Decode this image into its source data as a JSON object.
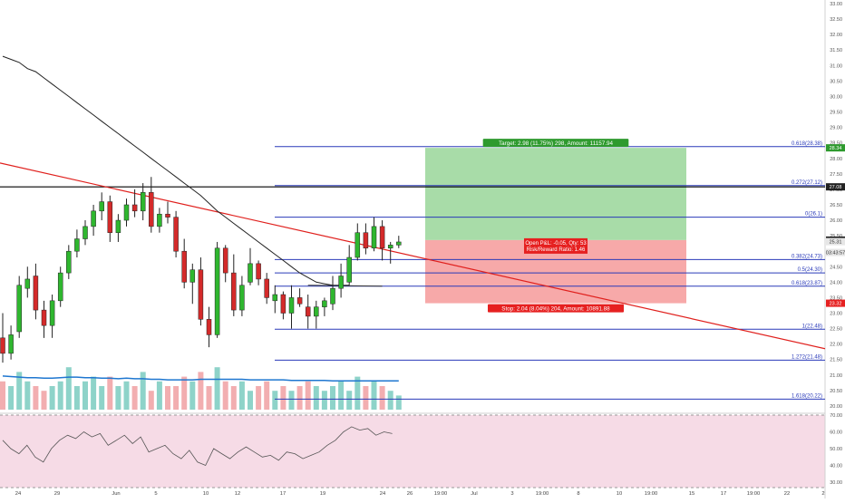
{
  "chart_data": [
    {
      "type": "candlestick",
      "title": "",
      "colors": {
        "up": "#26a69a",
        "down": "#ef5350",
        "up_bar": "#2fb72f",
        "down_bar": "#d42a2a",
        "ma": "#222222",
        "trendline": "#e0201d",
        "fib": "#2a3ab9",
        "target_zone": "#a8dca8",
        "stop_zone": "#f7a9a9",
        "target_label": "#2e9a2e",
        "stop_label": "#e62020",
        "pnl_label": "#e62020",
        "price_tag_green": "#2e9a2e",
        "price_tag_red": "#e62020",
        "rsi_band": "#f6dbe6",
        "vol_up": "#8ed3c9",
        "vol_down": "#f2aeb0",
        "vol_ma": "#1f77d0"
      },
      "y_axis": {
        "range": [
          20.0,
          33.0
        ],
        "ticks": [
          "33.00",
          "32.50",
          "32.00",
          "31.50",
          "31.00",
          "30.50",
          "30.00",
          "29.50",
          "29.00",
          "28.50",
          "28.00",
          "27.50",
          "27.00",
          "26.50",
          "26.00",
          "25.50",
          "25.00",
          "24.50",
          "24.00",
          "23.50",
          "23.00",
          "22.50",
          "22.00",
          "21.50",
          "21.00",
          "20.50",
          "20.00"
        ]
      },
      "x_axis": {
        "ticks": [
          "24",
          "29",
          "Jun",
          "5",
          "10",
          "12",
          "17",
          "19",
          "24",
          "26",
          "19:00",
          "Jul",
          "3",
          "19:00",
          "8",
          "10",
          "19:00",
          "15",
          "17",
          "19:00",
          "22",
          "2"
        ]
      },
      "price_tags": [
        {
          "label": "28.34",
          "value": 28.34,
          "kind": "green"
        },
        {
          "label": "27.08",
          "value": 27.08,
          "kind": "dark"
        },
        {
          "label": "25.36",
          "value": 25.36,
          "kind": "dark"
        },
        {
          "label": "25.31",
          "value": 25.31,
          "kind": "light"
        },
        {
          "label": "03:43:57",
          "value": 24.96,
          "kind": "light"
        },
        {
          "label": "23.32",
          "value": 23.32,
          "kind": "red"
        }
      ],
      "fib_levels": [
        {
          "label": "0.618(28.38)",
          "value": 28.38
        },
        {
          "label": "0.272(27.12)",
          "value": 27.12
        },
        {
          "label": "0(26.1)",
          "value": 26.1
        },
        {
          "label": "0.382(24.73)",
          "value": 24.73
        },
        {
          "label": "0.5(24.30)",
          "value": 24.3
        },
        {
          "label": "0.618(23.87)",
          "value": 23.87
        },
        {
          "label": "1(22.48)",
          "value": 22.48
        },
        {
          "label": "1.272(21.48)",
          "value": 21.48
        },
        {
          "label": "1.618(20.22)",
          "value": 20.22
        }
      ],
      "horizontal_line": {
        "value": 27.08
      },
      "position": {
        "entry": 25.36,
        "target": 28.34,
        "stop": 23.32,
        "target_label": "Target: 2.98 (11.75%) 298, Amount: 11157.94",
        "stop_label": "Stop: 2.04 (8.04%) 204, Amount: 10891.88",
        "pnl_line1": "Open P&L: -0.05, Qty: 53",
        "pnl_line2": "Risk/Reward Ratio: 1.46"
      },
      "trendline": {
        "start_value": 27.85,
        "end_value": 21.85
      },
      "candles": [
        {
          "o": 22.2,
          "h": 23.0,
          "l": 21.4,
          "c": 21.7
        },
        {
          "o": 21.7,
          "h": 22.6,
          "l": 21.5,
          "c": 22.3
        },
        {
          "o": 22.4,
          "h": 24.2,
          "l": 22.2,
          "c": 23.9
        },
        {
          "o": 23.8,
          "h": 24.5,
          "l": 23.5,
          "c": 24.1
        },
        {
          "o": 24.2,
          "h": 24.6,
          "l": 22.8,
          "c": 23.1
        },
        {
          "o": 23.1,
          "h": 23.4,
          "l": 22.2,
          "c": 22.6
        },
        {
          "o": 22.6,
          "h": 23.6,
          "l": 22.2,
          "c": 23.4
        },
        {
          "o": 23.4,
          "h": 24.5,
          "l": 23.2,
          "c": 24.3
        },
        {
          "o": 24.3,
          "h": 25.2,
          "l": 24.1,
          "c": 25.0
        },
        {
          "o": 25.0,
          "h": 25.7,
          "l": 24.8,
          "c": 25.4
        },
        {
          "o": 25.4,
          "h": 26.0,
          "l": 25.2,
          "c": 25.8
        },
        {
          "o": 25.8,
          "h": 26.5,
          "l": 25.5,
          "c": 26.3
        },
        {
          "o": 26.3,
          "h": 26.9,
          "l": 26.0,
          "c": 26.6
        },
        {
          "o": 26.6,
          "h": 26.8,
          "l": 25.3,
          "c": 25.6
        },
        {
          "o": 25.6,
          "h": 26.2,
          "l": 25.3,
          "c": 26.0
        },
        {
          "o": 26.0,
          "h": 26.7,
          "l": 25.8,
          "c": 26.5
        },
        {
          "o": 26.5,
          "h": 27.0,
          "l": 26.1,
          "c": 26.3
        },
        {
          "o": 26.3,
          "h": 27.2,
          "l": 26.0,
          "c": 26.9
        },
        {
          "o": 26.9,
          "h": 27.4,
          "l": 25.6,
          "c": 25.8
        },
        {
          "o": 25.8,
          "h": 26.4,
          "l": 25.6,
          "c": 26.2
        },
        {
          "o": 26.2,
          "h": 26.6,
          "l": 25.9,
          "c": 26.1
        },
        {
          "o": 26.1,
          "h": 26.3,
          "l": 24.8,
          "c": 25.0
        },
        {
          "o": 25.0,
          "h": 25.4,
          "l": 23.8,
          "c": 24.0
        },
        {
          "o": 24.0,
          "h": 24.6,
          "l": 23.3,
          "c": 24.4
        },
        {
          "o": 24.4,
          "h": 24.8,
          "l": 22.6,
          "c": 22.8
        },
        {
          "o": 22.8,
          "h": 23.2,
          "l": 21.9,
          "c": 22.3
        },
        {
          "o": 22.3,
          "h": 25.3,
          "l": 22.2,
          "c": 25.1
        },
        {
          "o": 25.1,
          "h": 25.2,
          "l": 24.0,
          "c": 24.3
        },
        {
          "o": 24.3,
          "h": 24.9,
          "l": 22.9,
          "c": 23.1
        },
        {
          "o": 23.1,
          "h": 24.2,
          "l": 22.9,
          "c": 23.9
        },
        {
          "o": 24.0,
          "h": 25.1,
          "l": 23.9,
          "c": 24.6
        },
        {
          "o": 24.6,
          "h": 24.7,
          "l": 23.9,
          "c": 24.1
        },
        {
          "o": 24.1,
          "h": 24.3,
          "l": 23.3,
          "c": 23.5
        },
        {
          "o": 23.4,
          "h": 23.9,
          "l": 23.0,
          "c": 23.6
        },
        {
          "o": 23.6,
          "h": 23.7,
          "l": 22.8,
          "c": 23.0
        },
        {
          "o": 23.0,
          "h": 23.9,
          "l": 22.5,
          "c": 23.5
        },
        {
          "o": 23.5,
          "h": 23.8,
          "l": 23.2,
          "c": 23.3
        },
        {
          "o": 23.2,
          "h": 23.6,
          "l": 22.5,
          "c": 22.9
        },
        {
          "o": 22.9,
          "h": 23.4,
          "l": 22.5,
          "c": 23.2
        },
        {
          "o": 23.2,
          "h": 23.5,
          "l": 22.9,
          "c": 23.4
        },
        {
          "o": 23.3,
          "h": 24.2,
          "l": 23.1,
          "c": 23.8
        },
        {
          "o": 23.8,
          "h": 24.6,
          "l": 23.5,
          "c": 24.2
        },
        {
          "o": 24.0,
          "h": 25.2,
          "l": 23.9,
          "c": 24.8
        },
        {
          "o": 24.8,
          "h": 25.9,
          "l": 24.7,
          "c": 25.6
        },
        {
          "o": 25.6,
          "h": 25.9,
          "l": 24.9,
          "c": 25.1
        },
        {
          "o": 25.1,
          "h": 26.1,
          "l": 25.0,
          "c": 25.8
        },
        {
          "o": 25.8,
          "h": 26.0,
          "l": 24.7,
          "c": 25.1
        },
        {
          "o": 25.1,
          "h": 25.3,
          "l": 24.6,
          "c": 25.2
        },
        {
          "o": 25.2,
          "h": 25.5,
          "l": 25.1,
          "c": 25.3
        }
      ],
      "ma": [
        31.3,
        31.2,
        31.1,
        30.9,
        30.8,
        30.6,
        30.4,
        30.2,
        30.0,
        29.8,
        29.6,
        29.4,
        29.2,
        29.0,
        28.8,
        28.6,
        28.4,
        28.2,
        28.0,
        27.8,
        27.6,
        27.4,
        27.2,
        27.0,
        26.8,
        26.55,
        26.3,
        26.1,
        25.9,
        25.7,
        25.5,
        25.3,
        25.1,
        24.9,
        24.7,
        24.5,
        24.3,
        24.15,
        24.0,
        23.95,
        23.9,
        23.9,
        23.9
      ],
      "volume": {
        "values": [
          6,
          5,
          8,
          6,
          5,
          4,
          5,
          6,
          9,
          5,
          6,
          7,
          5,
          7,
          5,
          6,
          5,
          8,
          4,
          6,
          5,
          5,
          7,
          6,
          8,
          5,
          9,
          6,
          5,
          6,
          4,
          5,
          6,
          4,
          5,
          4,
          5,
          6,
          5,
          4,
          5,
          6,
          4,
          7,
          5,
          6,
          5,
          4,
          3
        ],
        "up": [
          false,
          true,
          true,
          true,
          false,
          false,
          true,
          true,
          true,
          true,
          true,
          true,
          true,
          false,
          true,
          true,
          false,
          true,
          false,
          true,
          false,
          false,
          false,
          true,
          false,
          false,
          true,
          false,
          false,
          true,
          true,
          false,
          false,
          true,
          false,
          true,
          false,
          false,
          true,
          true,
          true,
          true,
          true,
          true,
          false,
          true,
          false,
          true,
          true
        ],
        "ma": [
          6.2,
          6.1,
          6.0,
          5.9,
          5.9,
          5.8,
          5.8,
          5.9,
          6.0,
          6.0,
          5.9,
          5.9,
          5.8,
          5.8,
          5.7,
          5.8,
          5.7,
          5.7,
          5.6,
          5.6,
          5.5,
          5.5,
          5.5,
          5.5,
          5.6,
          5.6,
          5.6,
          5.6,
          5.6,
          5.6,
          5.5,
          5.5,
          5.5,
          5.5,
          5.5,
          5.4,
          5.4,
          5.4,
          5.4,
          5.4,
          5.3,
          5.3,
          5.3,
          5.3,
          5.3,
          5.3,
          5.3,
          5.3,
          5.3
        ]
      },
      "rsi": {
        "ticks": [
          "70.00",
          "60.00",
          "50.00",
          "40.00",
          "30.00"
        ],
        "range": [
          30,
          70
        ],
        "values": [
          55,
          50,
          47,
          52,
          45,
          42,
          50,
          55,
          58,
          56,
          60,
          57,
          59,
          52,
          55,
          58,
          53,
          57,
          48,
          50,
          52,
          47,
          44,
          49,
          42,
          40,
          50,
          47,
          44,
          48,
          51,
          48,
          45,
          46,
          43,
          48,
          47,
          44,
          46,
          48,
          52,
          55,
          60,
          63,
          61,
          62,
          58,
          60,
          59
        ]
      }
    }
  ]
}
